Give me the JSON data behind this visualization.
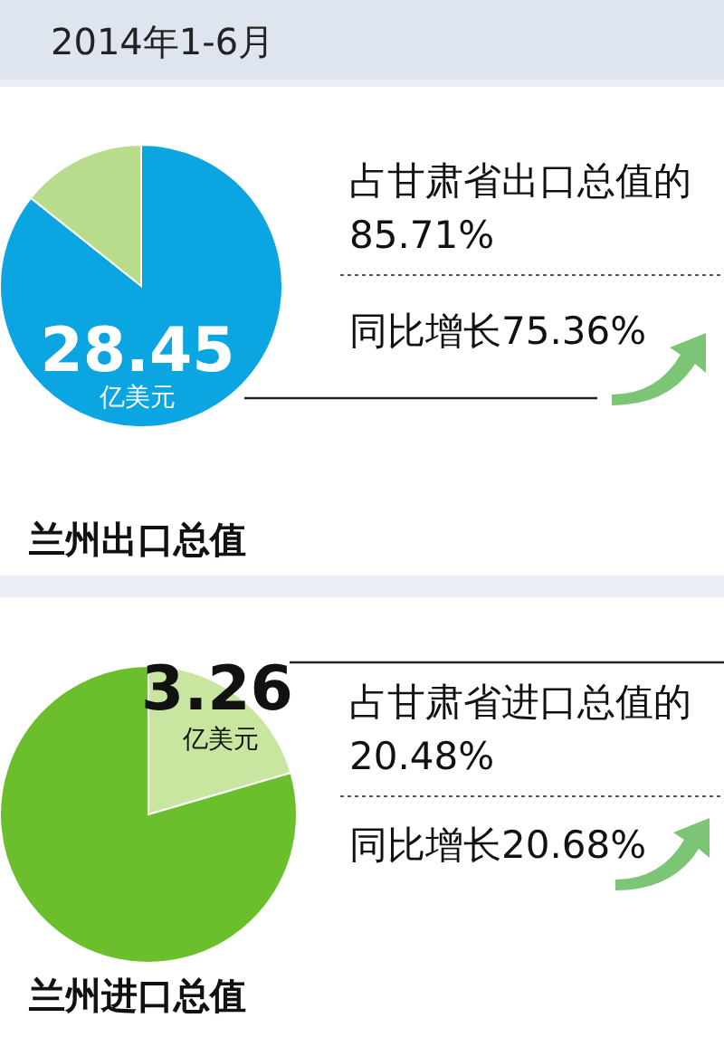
{
  "chart_data": [
    {
      "type": "pie",
      "title": "兰州出口总值",
      "categories": [
        null,
        null
      ],
      "values": [
        85.71,
        14.29
      ],
      "colors": [
        "#0ba6e2",
        "#b8dc8c"
      ],
      "annotations": [
        "2014年1-6月",
        "28.45",
        "亿美元",
        "占甘肃省出口总值的85.71%",
        "同比增长75.36%"
      ]
    },
    {
      "type": "pie",
      "title": "兰州进口总值",
      "categories": [
        null,
        null
      ],
      "values": [
        20.48,
        79.52
      ],
      "colors": [
        "#c8e6a0",
        "#6cbf2c"
      ],
      "annotations": [
        "3.26",
        "亿美元",
        "占甘肃省进口总值的20.48%",
        "同比增长20.68%"
      ]
    }
  ]
}
